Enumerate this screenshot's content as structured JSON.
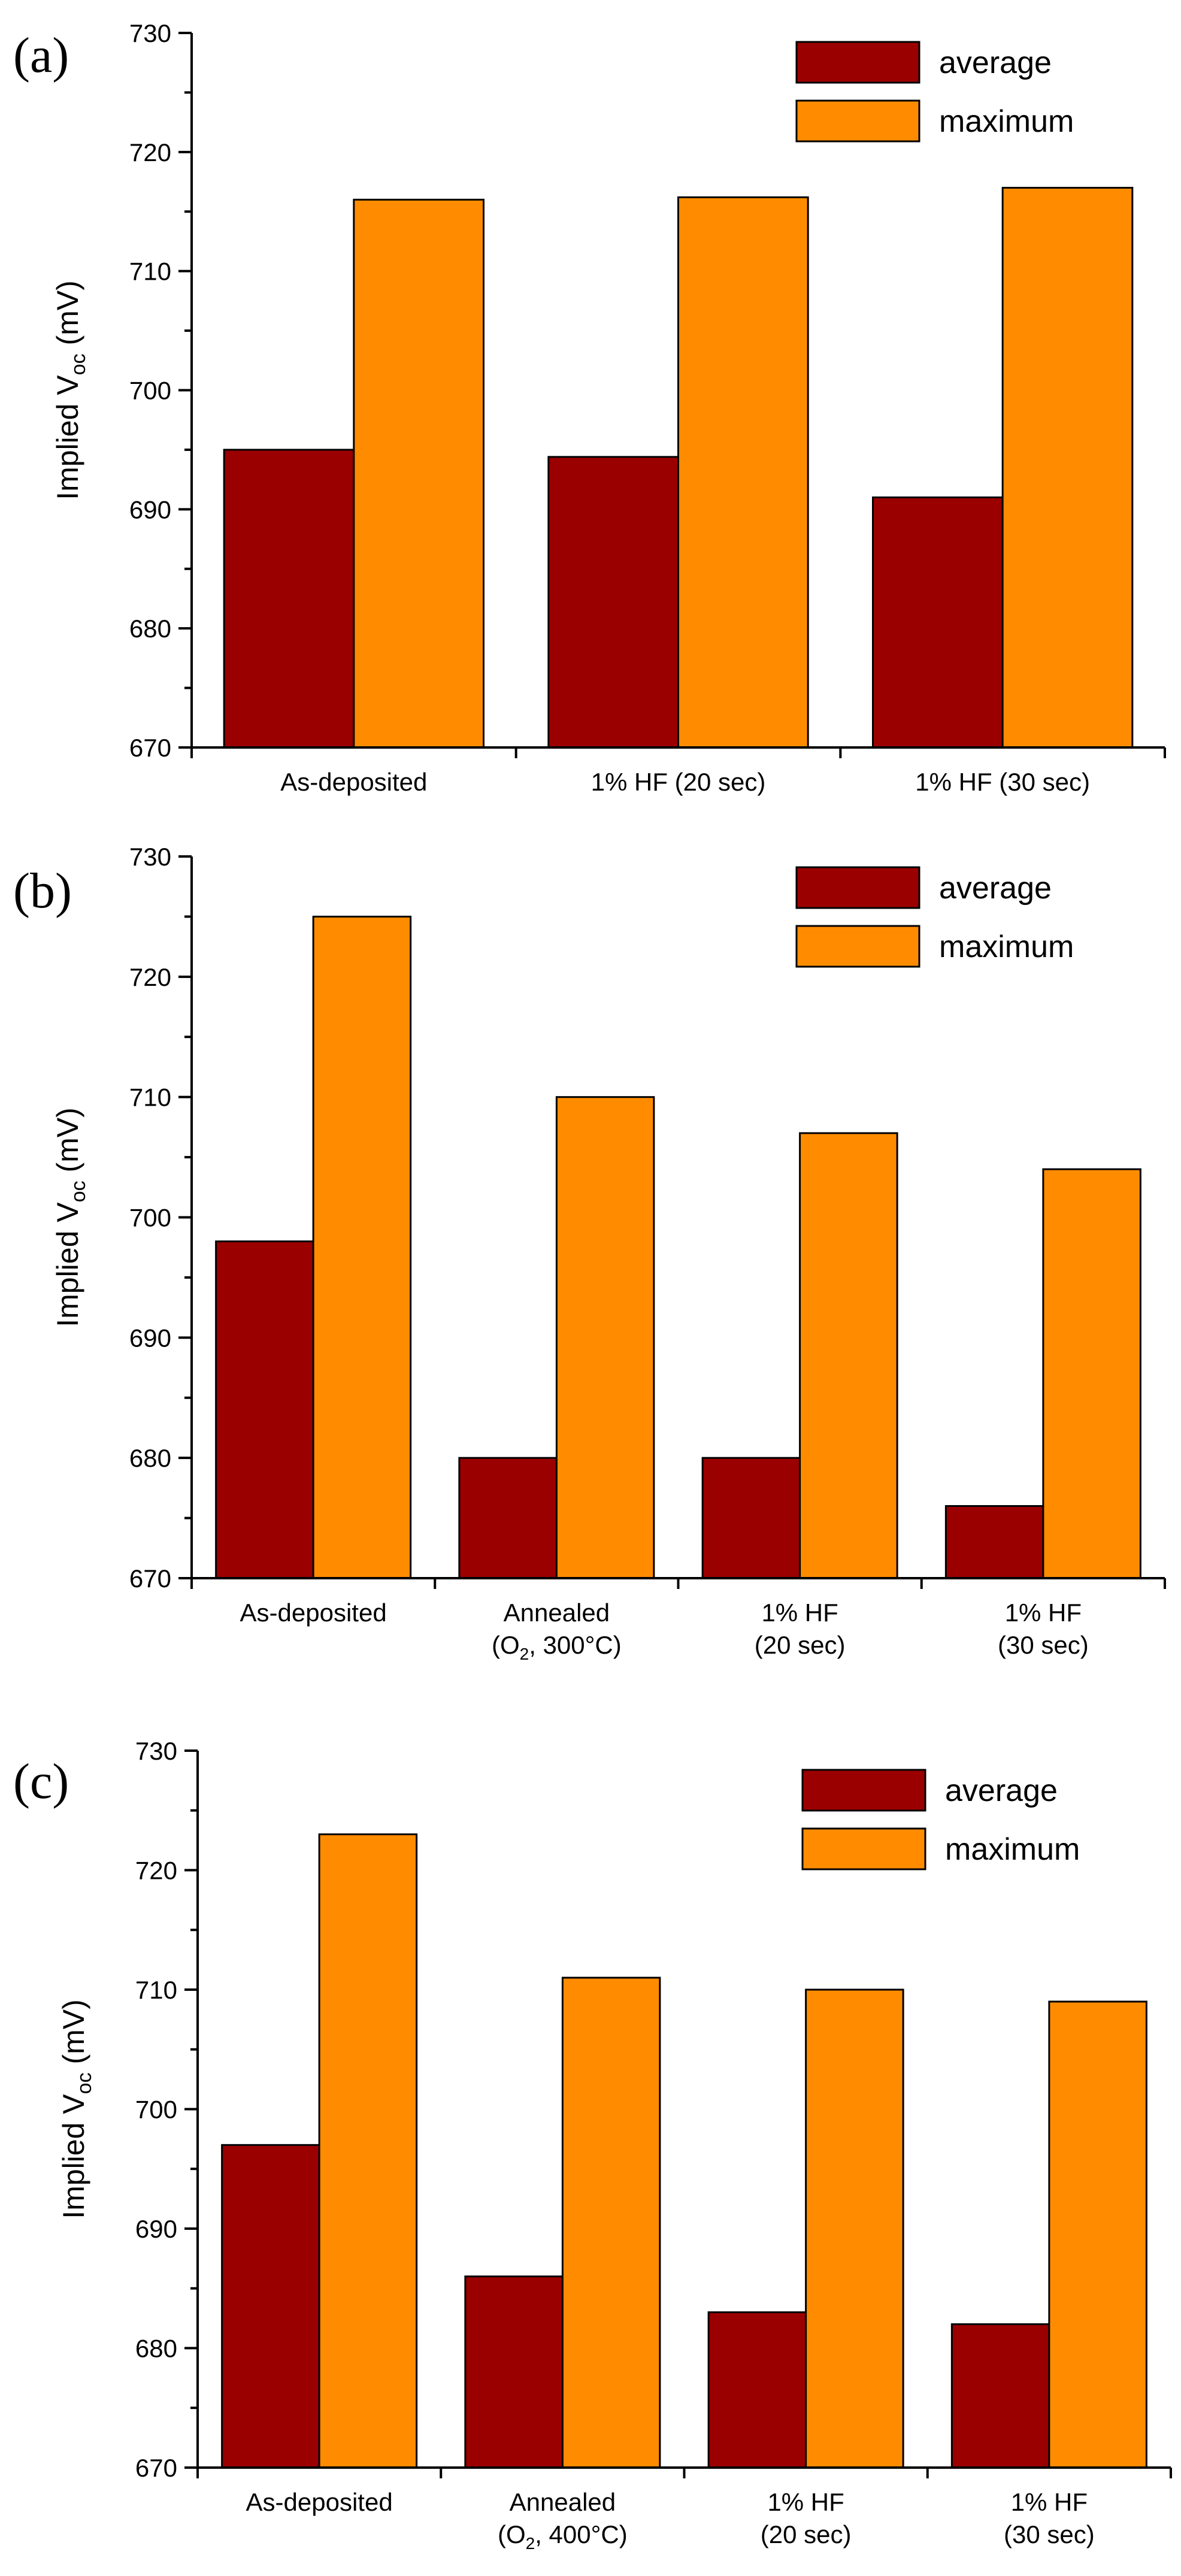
{
  "colors": {
    "average": "#9b0000",
    "maximum": "#ff8c00"
  },
  "chart_data": [
    {
      "type": "bar",
      "panel_label": "(a)",
      "ylabel": "Implied V",
      "ylabel_sub": "oc",
      "ylabel_unit": " (mV)",
      "ylim": [
        670,
        730
      ],
      "yticks": [
        670,
        680,
        690,
        700,
        710,
        720,
        730
      ],
      "categories": [
        [
          "As-deposited"
        ],
        [
          "1% HF (20 sec)"
        ],
        [
          "1% HF (30 sec)"
        ]
      ],
      "series": [
        {
          "name": "average",
          "values": [
            695,
            694.4,
            691
          ]
        },
        {
          "name": "maximum",
          "values": [
            716,
            716.2,
            717
          ]
        }
      ],
      "legend_position": "top-right"
    },
    {
      "type": "bar",
      "panel_label": "(b)",
      "ylabel": "Implied V",
      "ylabel_sub": "oc",
      "ylabel_unit": " (mV)",
      "ylim": [
        670,
        730
      ],
      "yticks": [
        670,
        680,
        690,
        700,
        710,
        720,
        730
      ],
      "categories": [
        [
          "As-deposited"
        ],
        [
          "Annealed",
          "(O2, 300°C)"
        ],
        [
          "1% HF",
          "(20 sec)"
        ],
        [
          "1% HF",
          "(30 sec)"
        ]
      ],
      "series": [
        {
          "name": "average",
          "values": [
            698,
            680,
            680,
            676
          ]
        },
        {
          "name": "maximum",
          "values": [
            725,
            710,
            707,
            704
          ]
        }
      ],
      "legend_position": "top-right"
    },
    {
      "type": "bar",
      "panel_label": "(c)",
      "ylabel": "Implied V",
      "ylabel_sub": "oc",
      "ylabel_unit": " (mV)",
      "ylim": [
        670,
        730
      ],
      "yticks": [
        670,
        680,
        690,
        700,
        710,
        720,
        730
      ],
      "categories": [
        [
          "As-deposited"
        ],
        [
          "Annealed",
          "(O2, 400°C)"
        ],
        [
          "1% HF",
          "(20 sec)"
        ],
        [
          "1% HF",
          "(30 sec)"
        ]
      ],
      "series": [
        {
          "name": "average",
          "values": [
            697,
            686,
            683,
            682
          ]
        },
        {
          "name": "maximum",
          "values": [
            723,
            711,
            710,
            709
          ]
        }
      ],
      "legend_position": "top-right"
    }
  ]
}
